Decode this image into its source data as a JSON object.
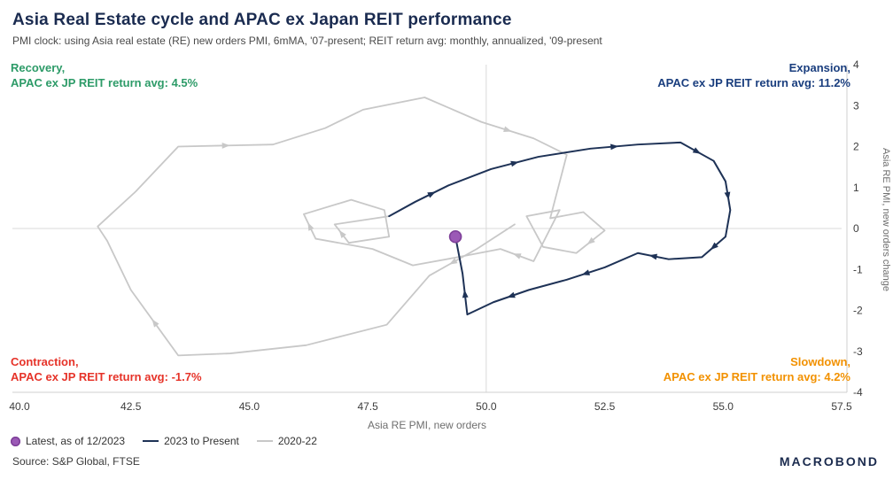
{
  "header": {
    "title": "Asia Real Estate cycle and APAC ex Japan REIT performance",
    "subtitle": "PMI clock: using Asia real estate (RE) new orders PMI, 6mMA, '07-present; REIT return avg: monthly, annualized, '09-present"
  },
  "quadrants": {
    "recovery": {
      "line1": "Recovery,",
      "line2": "APAC ex JP REIT return avg: 4.5%",
      "color": "#2d9b68"
    },
    "expansion": {
      "line1": "Expansion,",
      "line2": "APAC ex JP REIT return avg: 11.2%",
      "color": "#1a3e7e"
    },
    "contraction": {
      "line1": "Contraction,",
      "line2": "APAC ex JP REIT return avg: -1.7%",
      "color": "#e63329"
    },
    "slowdown": {
      "line1": "Slowdown,",
      "line2": "APAC ex JP REIT return avg: 4.2%",
      "color": "#f29100"
    }
  },
  "chart_data": {
    "type": "line",
    "title": "PMI clock phase diagram",
    "xlabel": "Asia RE PMI, new orders",
    "ylabel": "Asia RE PMI, new orders change",
    "xlim": [
      40.0,
      57.5
    ],
    "ylim": [
      -4,
      4
    ],
    "x_tick_labels": [
      "40.0",
      "42.5",
      "45.0",
      "47.5",
      "50.0",
      "52.5",
      "55.0",
      "57.5"
    ],
    "y_tick_labels": [
      "4",
      "3",
      "2",
      "1",
      "0",
      "-1",
      "-2",
      "-3",
      "-4"
    ],
    "grid": false,
    "legend_position": "bottom-left",
    "crosshair": {
      "x": 50.0,
      "y": 0
    },
    "series": [
      {
        "name": "2020-22",
        "color": "#c8c8c8",
        "arrow_spacing": 5,
        "points": [
          [
            50.6,
            0.1
          ],
          [
            49.8,
            -0.5
          ],
          [
            48.8,
            -1.15
          ],
          [
            47.9,
            -2.35
          ],
          [
            46.2,
            -2.85
          ],
          [
            44.6,
            -3.05
          ],
          [
            43.5,
            -3.1
          ],
          [
            42.5,
            -1.5
          ],
          [
            42.0,
            -0.3
          ],
          [
            41.8,
            0.05
          ],
          [
            42.6,
            0.9
          ],
          [
            43.5,
            2.0
          ],
          [
            45.5,
            2.05
          ],
          [
            46.6,
            2.45
          ],
          [
            47.4,
            2.9
          ],
          [
            48.7,
            3.2
          ],
          [
            49.9,
            2.6
          ],
          [
            51.0,
            2.2
          ],
          [
            51.7,
            1.8
          ],
          [
            51.35,
            0.25
          ],
          [
            52.05,
            0.4
          ],
          [
            52.5,
            -0.05
          ],
          [
            51.9,
            -0.6
          ],
          [
            51.2,
            -0.45
          ],
          [
            50.85,
            0.3
          ],
          [
            51.55,
            0.45
          ],
          [
            51.0,
            -0.8
          ],
          [
            50.3,
            -0.5
          ],
          [
            49.4,
            -0.7
          ],
          [
            48.45,
            -0.9
          ],
          [
            47.6,
            -0.5
          ],
          [
            46.4,
            -0.25
          ],
          [
            46.15,
            0.35
          ],
          [
            47.15,
            0.7
          ],
          [
            47.85,
            0.45
          ],
          [
            47.95,
            -0.2
          ],
          [
            47.1,
            -0.35
          ],
          [
            46.8,
            0.1
          ],
          [
            47.95,
            0.3
          ]
        ]
      },
      {
        "name": "2023 to Present",
        "color": "#1e3256",
        "arrow_spacing": 2,
        "points": [
          [
            47.95,
            0.3
          ],
          [
            48.5,
            0.65
          ],
          [
            49.2,
            1.05
          ],
          [
            50.1,
            1.45
          ],
          [
            51.1,
            1.75
          ],
          [
            52.2,
            1.95
          ],
          [
            53.2,
            2.05
          ],
          [
            54.1,
            2.1
          ],
          [
            54.8,
            1.65
          ],
          [
            55.05,
            1.15
          ],
          [
            55.15,
            0.45
          ],
          [
            55.05,
            -0.2
          ],
          [
            54.55,
            -0.7
          ],
          [
            53.85,
            -0.75
          ],
          [
            53.2,
            -0.6
          ],
          [
            52.5,
            -0.95
          ],
          [
            51.7,
            -1.25
          ],
          [
            50.9,
            -1.5
          ],
          [
            50.15,
            -1.8
          ],
          [
            49.6,
            -2.1
          ],
          [
            49.5,
            -1.1
          ],
          [
            49.35,
            -0.2
          ]
        ]
      }
    ],
    "latest": {
      "label": "Latest, as of 12/2023",
      "x": 49.35,
      "y": -0.2,
      "color": "#9b59b6",
      "stroke": "#7d3f98"
    }
  },
  "legend": [
    {
      "label": "Latest, as of 12/2023",
      "marker": "dot",
      "color": "#9b59b6"
    },
    {
      "label": "2023 to Present",
      "marker": "line",
      "color": "#1e3256"
    },
    {
      "label": "2020-22",
      "marker": "line",
      "color": "#c8c8c8"
    }
  ],
  "footer": {
    "source": "Source: S&P Global, FTSE",
    "logo": "MACROBOND"
  },
  "colors": {
    "title": "#1a2b50",
    "crosshair": "#d9d9d9",
    "axis": "#cfcfcf"
  }
}
